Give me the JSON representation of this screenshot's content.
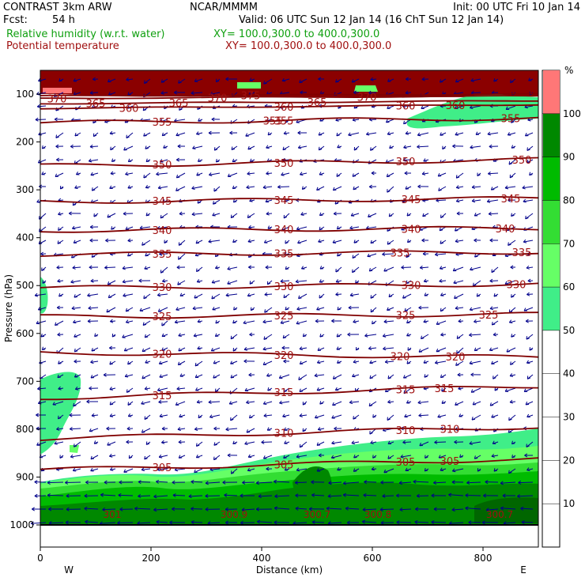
{
  "header": {
    "model": "CONTRAST  3km ARW",
    "center": "NCAR/MMMM",
    "init": "Init: 00 UTC Fri 10 Jan 14",
    "fcst_label": "Fcst:",
    "fcst_value": "54 h",
    "valid": "Valid: 06 UTC Sun 12 Jan 14 (16 ChT Sun 12 Jan 14)",
    "field1": "Relative humidity (w.r.t. water)",
    "field1_xy": "XY= 100.0,300.0 to 400.0,300.0",
    "field2": "Potential temperature",
    "field2_xy": "XY= 100.0,300.0 to 400.0,300.0"
  },
  "colors": {
    "rh_green_text": "#10a010",
    "theta_text": "#a01010",
    "theta_line": "#800000",
    "wind": "#00008b",
    "rh_50": "#40ee88",
    "rh_60": "#66ff66",
    "rh_70": "#33dd33",
    "rh_80": "#00bb00",
    "rh_90": "#008800",
    "rh_100": "#ff7777",
    "rh_top": "#8b0000"
  },
  "chart_data": {
    "type": "contour-cross-section",
    "xlabel": "Distance (km)",
    "ylabel": "Pressure (hPa)",
    "x_ticks": [
      0,
      200,
      400,
      600,
      800
    ],
    "y_ticks": [
      100,
      200,
      300,
      400,
      500,
      600,
      700,
      800,
      900,
      1000
    ],
    "xlim": [
      0,
      900
    ],
    "ylim": [
      1000,
      50
    ],
    "left_end": "W",
    "right_end": "E",
    "colorbar": {
      "unit": "%",
      "ticks": [
        10,
        20,
        30,
        40,
        50,
        60,
        70,
        80,
        90,
        100
      ],
      "shaded_levels": [
        50,
        60,
        70,
        80,
        90,
        100
      ]
    },
    "theta_contours": [
      {
        "value": 305,
        "label_x": [
          220,
          440,
          660,
          740
        ]
      },
      {
        "value": 310,
        "label_x": [
          440,
          660,
          740
        ]
      },
      {
        "value": 315,
        "label_x": [
          220,
          440,
          660,
          730
        ]
      },
      {
        "value": 320,
        "label_x": [
          220,
          440,
          650,
          750
        ]
      },
      {
        "value": 325,
        "label_x": [
          220,
          440,
          660,
          810
        ]
      },
      {
        "value": 330,
        "label_x": [
          220,
          440,
          670,
          860
        ]
      },
      {
        "value": 335,
        "label_x": [
          220,
          440,
          650,
          870
        ]
      },
      {
        "value": 340,
        "label_x": [
          220,
          440,
          670,
          840
        ]
      },
      {
        "value": 345,
        "label_x": [
          220,
          440,
          670,
          850
        ]
      },
      {
        "value": 350,
        "label_x": [
          220,
          440,
          660,
          870
        ]
      },
      {
        "value": 355,
        "label_x": [
          220,
          420,
          440,
          850
        ]
      },
      {
        "value": 360,
        "label_x": [
          160,
          440,
          660,
          750
        ]
      },
      {
        "value": 365,
        "label_x": [
          100,
          250,
          500
        ]
      },
      {
        "value": 370,
        "label_x": [
          30,
          320,
          590
        ]
      },
      {
        "value": 375,
        "label_x": [
          380
        ]
      }
    ],
    "point_labels": [
      {
        "text": "300.7",
        "x": 500
      },
      {
        "text": "300.9",
        "x": 350
      },
      {
        "text": "300.8",
        "x": 610
      },
      {
        "text": "300.7",
        "x": 830
      },
      {
        "text": "301",
        "x": 130
      }
    ]
  }
}
